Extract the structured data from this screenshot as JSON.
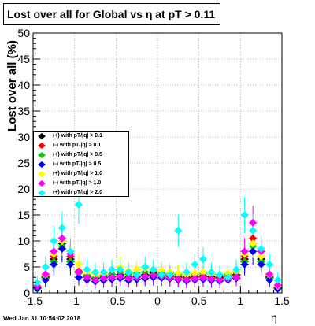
{
  "chart_data": {
    "type": "scatter",
    "title": "Lost over all for Global vs   η at pT > 0.11",
    "xlabel": "η",
    "ylabel": "Lost over all (%)",
    "xlim": [
      -1.5,
      1.5
    ],
    "ylim": [
      0,
      50
    ],
    "x_ticks": [
      "-1.5",
      "-1",
      "-0.5",
      "0",
      "0.5",
      "1",
      "1.5"
    ],
    "y_ticks": [
      "0",
      "5",
      "10",
      "15",
      "20",
      "25",
      "30",
      "35",
      "40",
      "45",
      "50"
    ],
    "legend_placement": "left-middle",
    "grid": true,
    "series": [
      {
        "name": "(+) with pT/|q| > 0.1",
        "color": "#000000"
      },
      {
        "name": "(-) with pT/|q| > 0.1",
        "color": "#ff0000"
      },
      {
        "name": "(+) with pT/|q| > 0.5",
        "color": "#00cc00"
      },
      {
        "name": "(-) with pT/|q| > 0.5",
        "color": "#0000ff"
      },
      {
        "name": "(+) with pT/|q| > 1.0",
        "color": "#ffff00"
      },
      {
        "name": "(-) with pT/|q| > 1.0",
        "color": "#ff00ff"
      },
      {
        "name": "(+) with pT/|q| > 2.0",
        "color": "#00ffff"
      }
    ],
    "x": [
      -1.45,
      -1.35,
      -1.25,
      -1.15,
      -1.05,
      -0.95,
      -0.85,
      -0.75,
      -0.65,
      -0.55,
      -0.45,
      -0.35,
      -0.25,
      -0.15,
      -0.05,
      0.05,
      0.15,
      0.25,
      0.35,
      0.45,
      0.55,
      0.65,
      0.75,
      0.85,
      0.95,
      1.05,
      1.15,
      1.25,
      1.35,
      1.45
    ],
    "values": [
      [
        1.0,
        3.0,
        6.5,
        9.5,
        6.5,
        4.0,
        3.2,
        2.8,
        3.0,
        3.2,
        3.5,
        3.0,
        3.2,
        3.5,
        3.8,
        3.6,
        3.4,
        3.2,
        3.0,
        3.2,
        3.3,
        3.1,
        3.0,
        3.2,
        3.5,
        6.5,
        9.5,
        6.5,
        3.0,
        1.0
      ],
      [
        1.2,
        3.2,
        7.0,
        10.0,
        7.0,
        4.2,
        3.0,
        2.6,
        2.8,
        3.0,
        3.2,
        2.8,
        3.0,
        3.3,
        3.5,
        3.4,
        3.1,
        3.0,
        2.8,
        3.0,
        3.1,
        2.9,
        2.8,
        3.0,
        3.3,
        7.0,
        10.5,
        7.0,
        3.2,
        1.1
      ],
      [
        0.8,
        2.8,
        6.0,
        9.0,
        6.0,
        3.8,
        3.4,
        3.0,
        3.4,
        3.6,
        4.0,
        3.6,
        3.8,
        4.0,
        4.2,
        4.0,
        3.8,
        3.6,
        3.4,
        3.6,
        3.8,
        3.6,
        3.4,
        3.6,
        4.0,
        6.0,
        9.0,
        6.0,
        2.8,
        0.9
      ],
      [
        0.9,
        2.5,
        5.5,
        8.5,
        5.5,
        3.0,
        2.5,
        2.2,
        2.4,
        2.6,
        2.8,
        2.4,
        2.6,
        2.8,
        3.0,
        2.9,
        2.7,
        2.5,
        2.3,
        2.5,
        2.6,
        2.4,
        2.3,
        2.5,
        2.8,
        5.5,
        8.0,
        5.5,
        2.5,
        0.8
      ],
      [
        1.5,
        3.5,
        7.5,
        10.0,
        8.0,
        5.5,
        4.0,
        3.5,
        3.8,
        4.5,
        5.0,
        4.2,
        4.5,
        4.8,
        4.5,
        4.3,
        4.0,
        3.8,
        3.5,
        3.8,
        4.0,
        3.7,
        3.5,
        3.8,
        4.2,
        7.5,
        9.5,
        7.0,
        3.5,
        1.3
      ],
      [
        1.3,
        3.6,
        8.0,
        10.5,
        7.5,
        4.0,
        3.0,
        2.5,
        2.8,
        3.0,
        3.2,
        2.8,
        3.0,
        3.2,
        3.4,
        3.2,
        2.9,
        2.7,
        2.5,
        2.7,
        2.9,
        2.7,
        2.5,
        2.7,
        3.0,
        8.0,
        13.5,
        8.0,
        3.6,
        1.5
      ],
      [
        2.0,
        5.0,
        10.0,
        12.5,
        8.0,
        17.0,
        4.5,
        4.0,
        4.0,
        4.5,
        4.5,
        4.0,
        3.5,
        5.0,
        4.5,
        3.5,
        3.5,
        12.0,
        4.0,
        5.5,
        6.5,
        4.0,
        3.5,
        3.0,
        4.5,
        15.0,
        12.0,
        8.5,
        5.5,
        2.5
      ]
    ]
  },
  "footer": {
    "timestamp": "Wed Jan 31 10:56:02 2018"
  }
}
